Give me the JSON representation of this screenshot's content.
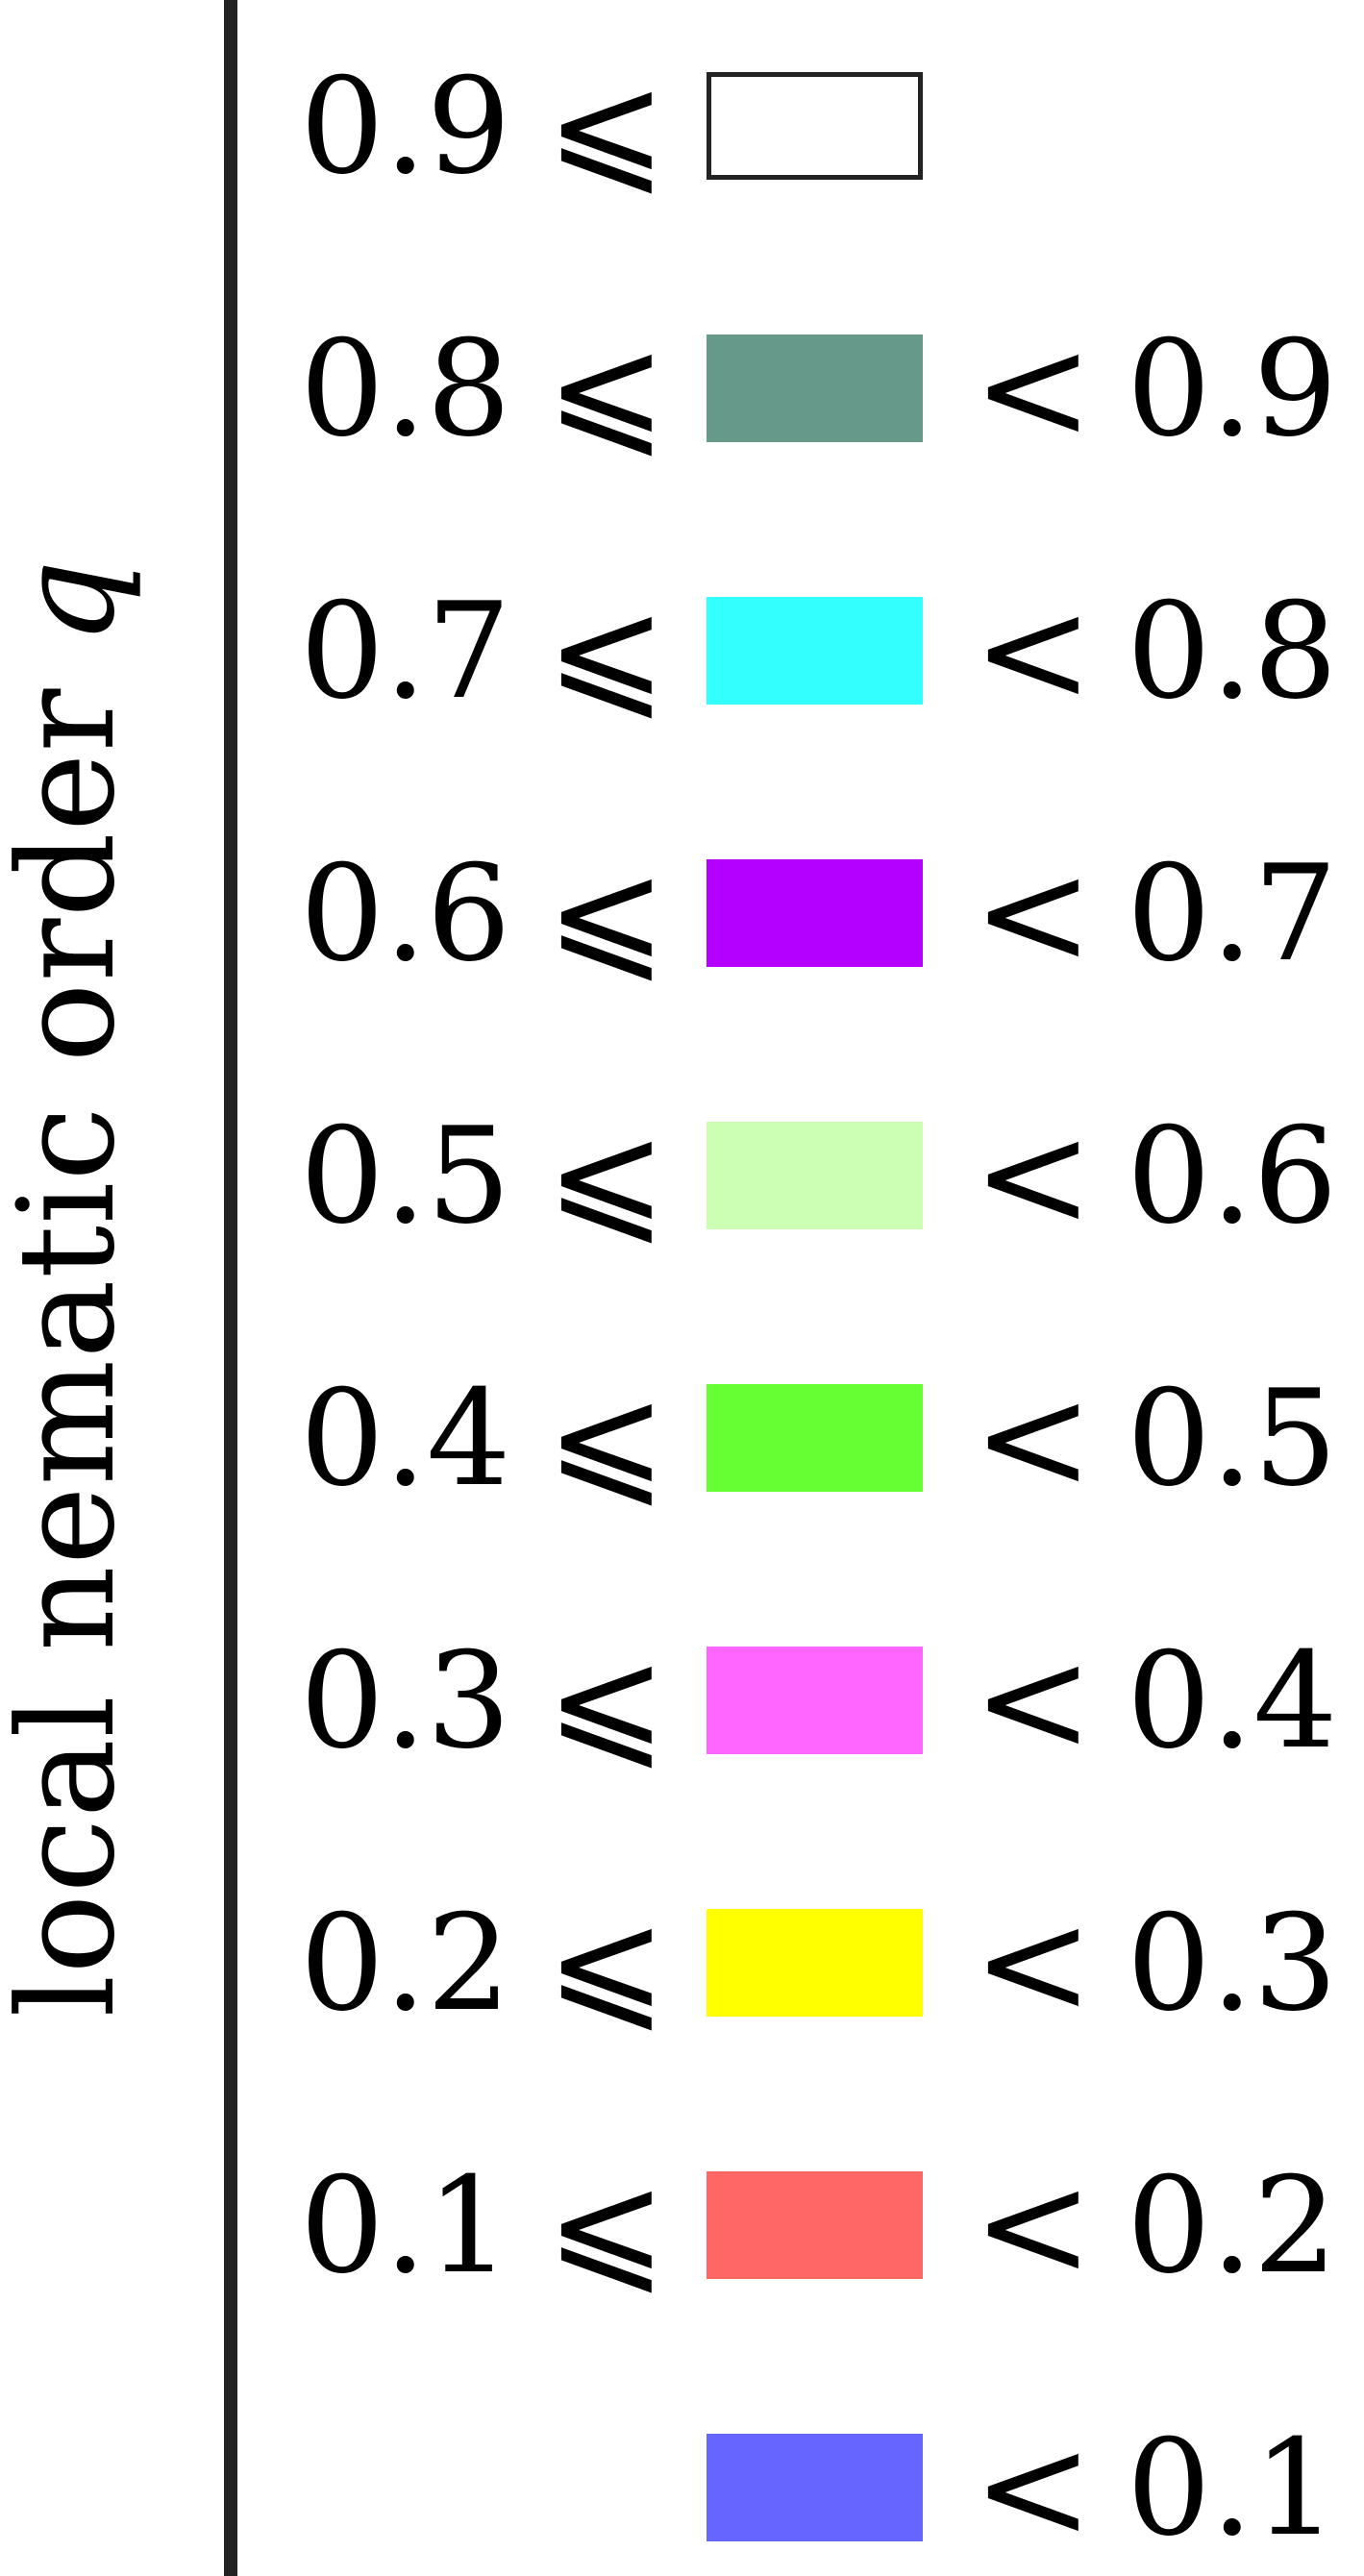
{
  "legend": {
    "title": "local nematic order",
    "title_symbol": "q",
    "le_symbol": "⩽",
    "lt_symbol": "<",
    "items": [
      {
        "low": "0.9",
        "high": "",
        "color": "#ffffff",
        "outlined": true
      },
      {
        "low": "0.8",
        "high": "0.9",
        "color": "#66998a"
      },
      {
        "low": "0.7",
        "high": "0.8",
        "color": "#33ffff"
      },
      {
        "low": "0.6",
        "high": "0.7",
        "color": "#b300ff"
      },
      {
        "low": "0.5",
        "high": "0.6",
        "color": "#ccffb3"
      },
      {
        "low": "0.4",
        "high": "0.5",
        "color": "#66ff33"
      },
      {
        "low": "0.3",
        "high": "0.4",
        "color": "#ff66ff"
      },
      {
        "low": "0.2",
        "high": "0.3",
        "color": "#ffff00"
      },
      {
        "low": "0.1",
        "high": "0.2",
        "color": "#ff6666"
      },
      {
        "low": "",
        "high": "0.1",
        "color": "#6666ff"
      }
    ]
  }
}
